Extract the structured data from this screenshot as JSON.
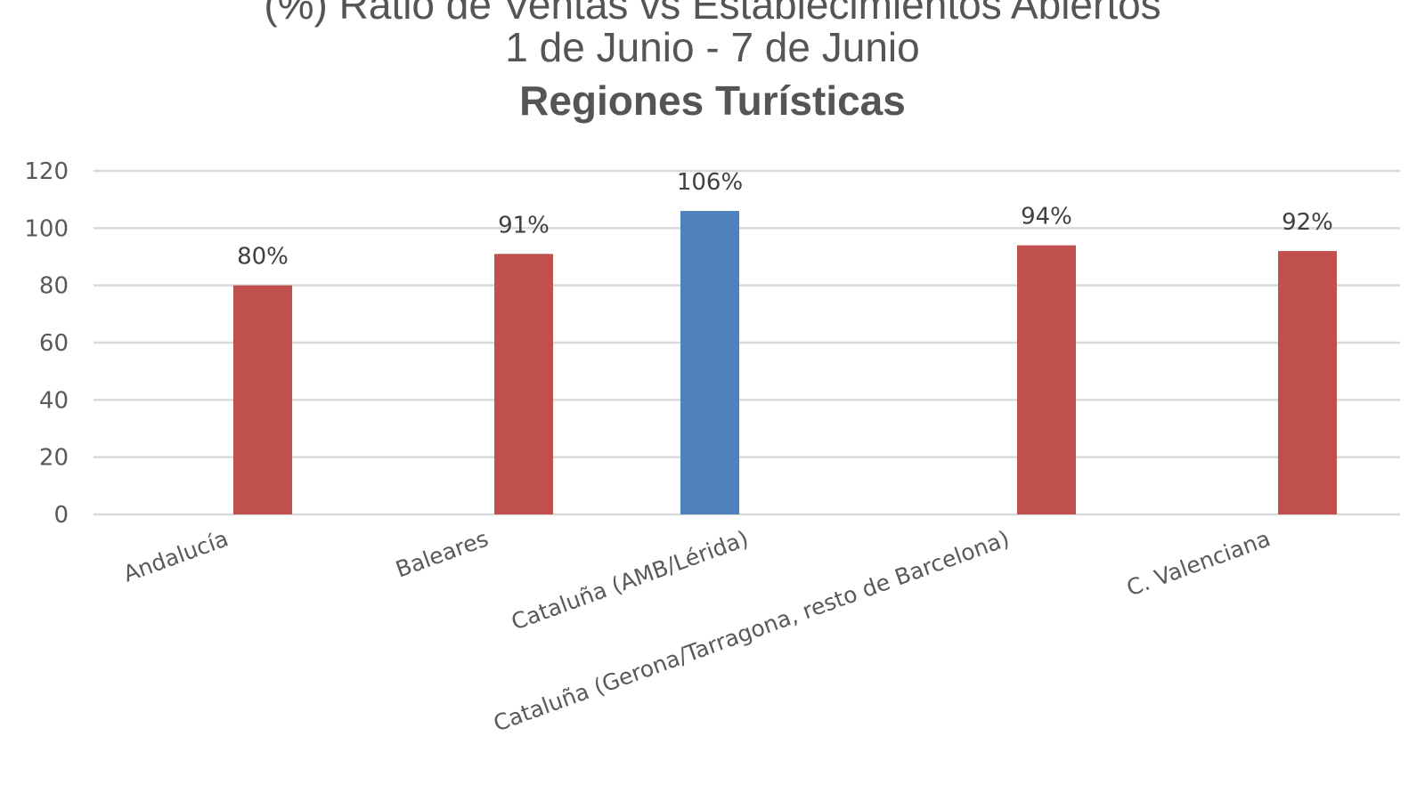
{
  "chart_data": {
    "type": "bar",
    "title": "(%) Ratio de Ventas vs Establecimientos Abiertos",
    "subtitle": "1 de Junio - 7 de Junio",
    "subtitle2": "Regiones Turísticas",
    "categories": [
      "Andalucía",
      "Baleares",
      "Cataluña (AMB/Lérida)",
      "Cataluña (Gerona/Tarragona, resto de Barcelona)",
      "C. Valenciana"
    ],
    "values": [
      80,
      91,
      106,
      94,
      92
    ],
    "data_labels": [
      "80%",
      "91%",
      "106%",
      "94%",
      "92%"
    ],
    "bar_colors": [
      "#C0504D",
      "#C0504D",
      "#4F81BD",
      "#C0504D",
      "#C0504D"
    ],
    "yticks": [
      "0",
      "20",
      "40",
      "60",
      "80",
      "100",
      "120"
    ],
    "ylim": [
      0,
      120
    ],
    "grid": true,
    "xlabel": "",
    "ylabel": ""
  }
}
